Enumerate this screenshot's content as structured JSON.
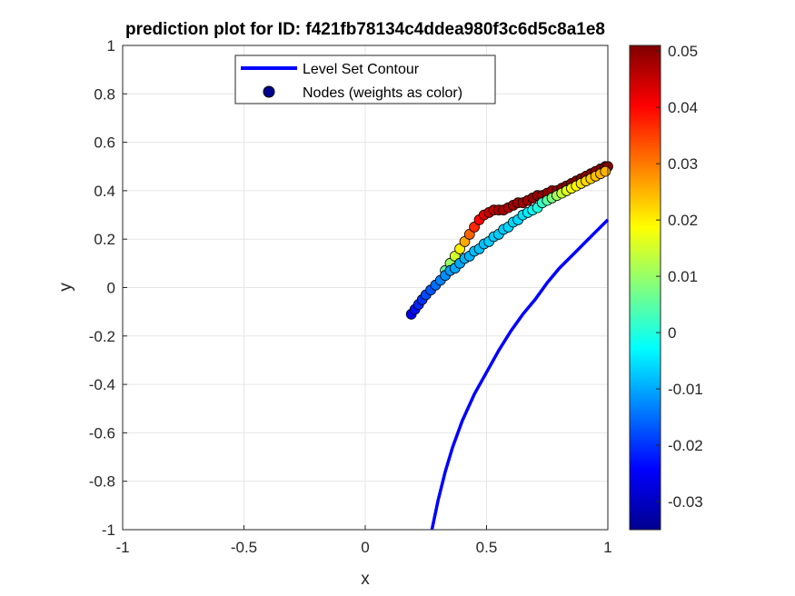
{
  "chart_data": {
    "type": "scatter",
    "title": "prediction plot for ID: f421fb78134c4ddea980f3c6d5c8a1e8",
    "xlabel": "x",
    "ylabel": "y",
    "xlim": [
      -1,
      1
    ],
    "ylim": [
      -1,
      1
    ],
    "xticks": [
      "-1",
      "-0.5",
      "0",
      "0.5",
      "1"
    ],
    "yticks": [
      "-1",
      "-0.8",
      "-0.6",
      "-0.4",
      "-0.2",
      "0",
      "0.2",
      "0.4",
      "0.6",
      "0.8",
      "1"
    ],
    "grid": true,
    "legend": {
      "placement": "top-center",
      "entries": [
        "Level Set Contour",
        "Nodes (weights as color)"
      ]
    },
    "colorbar": {
      "colormap": "jet",
      "clim": [
        -0.035,
        0.051
      ],
      "ticks": [
        "-0.03",
        "-0.02",
        "-0.01",
        "0",
        "0.01",
        "0.02",
        "0.03",
        "0.04",
        "0.05"
      ]
    },
    "series": [
      {
        "name": "Level Set Contour",
        "kind": "line",
        "color": "#0000ff",
        "x": [
          0.275,
          0.3,
          0.33,
          0.36,
          0.4,
          0.45,
          0.5,
          0.55,
          0.6,
          0.65,
          0.7,
          0.75,
          0.8,
          0.85,
          0.9,
          0.95,
          1.0
        ],
        "y": [
          -1.0,
          -0.88,
          -0.76,
          -0.66,
          -0.55,
          -0.44,
          -0.35,
          -0.26,
          -0.18,
          -0.11,
          -0.05,
          0.02,
          0.08,
          0.13,
          0.18,
          0.23,
          0.28
        ]
      },
      {
        "name": "Nodes (weights as color)",
        "kind": "scatter",
        "lower_branch": {
          "x": [
            0.19,
            0.205,
            0.22,
            0.235,
            0.25,
            0.27,
            0.29,
            0.31,
            0.33,
            0.35,
            0.37,
            0.39,
            0.41,
            0.43,
            0.45,
            0.47,
            0.49,
            0.51,
            0.53,
            0.55,
            0.57,
            0.59,
            0.61,
            0.63,
            0.65,
            0.67,
            0.69,
            0.71,
            0.73,
            0.75,
            0.77,
            0.79,
            0.81,
            0.83,
            0.85,
            0.87,
            0.89,
            0.91,
            0.93,
            0.95,
            0.97,
            0.99
          ],
          "y": [
            -0.11,
            -0.09,
            -0.07,
            -0.05,
            -0.03,
            -0.01,
            0.01,
            0.03,
            0.05,
            0.07,
            0.08,
            0.1,
            0.12,
            0.13,
            0.15,
            0.16,
            0.18,
            0.19,
            0.21,
            0.22,
            0.24,
            0.25,
            0.27,
            0.28,
            0.3,
            0.31,
            0.32,
            0.33,
            0.35,
            0.36,
            0.37,
            0.38,
            0.39,
            0.4,
            0.41,
            0.42,
            0.43,
            0.44,
            0.45,
            0.46,
            0.47,
            0.48
          ],
          "weights": [
            -0.025,
            -0.023,
            -0.021,
            -0.02,
            -0.018,
            -0.017,
            -0.015,
            -0.013,
            -0.012,
            -0.011,
            -0.01,
            -0.01,
            -0.009,
            -0.009,
            -0.008,
            -0.008,
            -0.008,
            -0.007,
            -0.007,
            -0.007,
            -0.007,
            -0.006,
            -0.006,
            -0.006,
            -0.005,
            -0.004,
            -0.002,
            0.0,
            0.002,
            0.005,
            0.008,
            0.011,
            0.014,
            0.016,
            0.018,
            0.019,
            0.021,
            0.022,
            0.023,
            0.024,
            0.025,
            0.025
          ]
        },
        "upper_branch": {
          "x": [
            0.33,
            0.35,
            0.37,
            0.39,
            0.41,
            0.43,
            0.45,
            0.47,
            0.49,
            0.51,
            0.53,
            0.55,
            0.57,
            0.59,
            0.61,
            0.63,
            0.65,
            0.67,
            0.69,
            0.71,
            0.73,
            0.75,
            0.77,
            0.79,
            0.81,
            0.83,
            0.85,
            0.87,
            0.89,
            0.91,
            0.93,
            0.95,
            0.97,
            0.99,
            1.0
          ],
          "y": [
            0.07,
            0.1,
            0.13,
            0.16,
            0.19,
            0.22,
            0.25,
            0.28,
            0.3,
            0.31,
            0.32,
            0.32,
            0.32,
            0.33,
            0.34,
            0.35,
            0.35,
            0.36,
            0.37,
            0.38,
            0.38,
            0.39,
            0.4,
            0.4,
            0.41,
            0.42,
            0.43,
            0.44,
            0.45,
            0.46,
            0.47,
            0.48,
            0.49,
            0.5,
            0.5
          ],
          "weights": [
            0.005,
            0.01,
            0.015,
            0.02,
            0.026,
            0.032,
            0.037,
            0.04,
            0.043,
            0.045,
            0.046,
            0.047,
            0.047,
            0.047,
            0.048,
            0.048,
            0.048,
            0.048,
            0.049,
            0.049,
            0.049,
            0.049,
            0.049,
            0.049,
            0.05,
            0.05,
            0.05,
            0.05,
            0.05,
            0.05,
            0.05,
            0.05,
            0.05,
            0.05,
            0.05
          ]
        }
      }
    ]
  }
}
